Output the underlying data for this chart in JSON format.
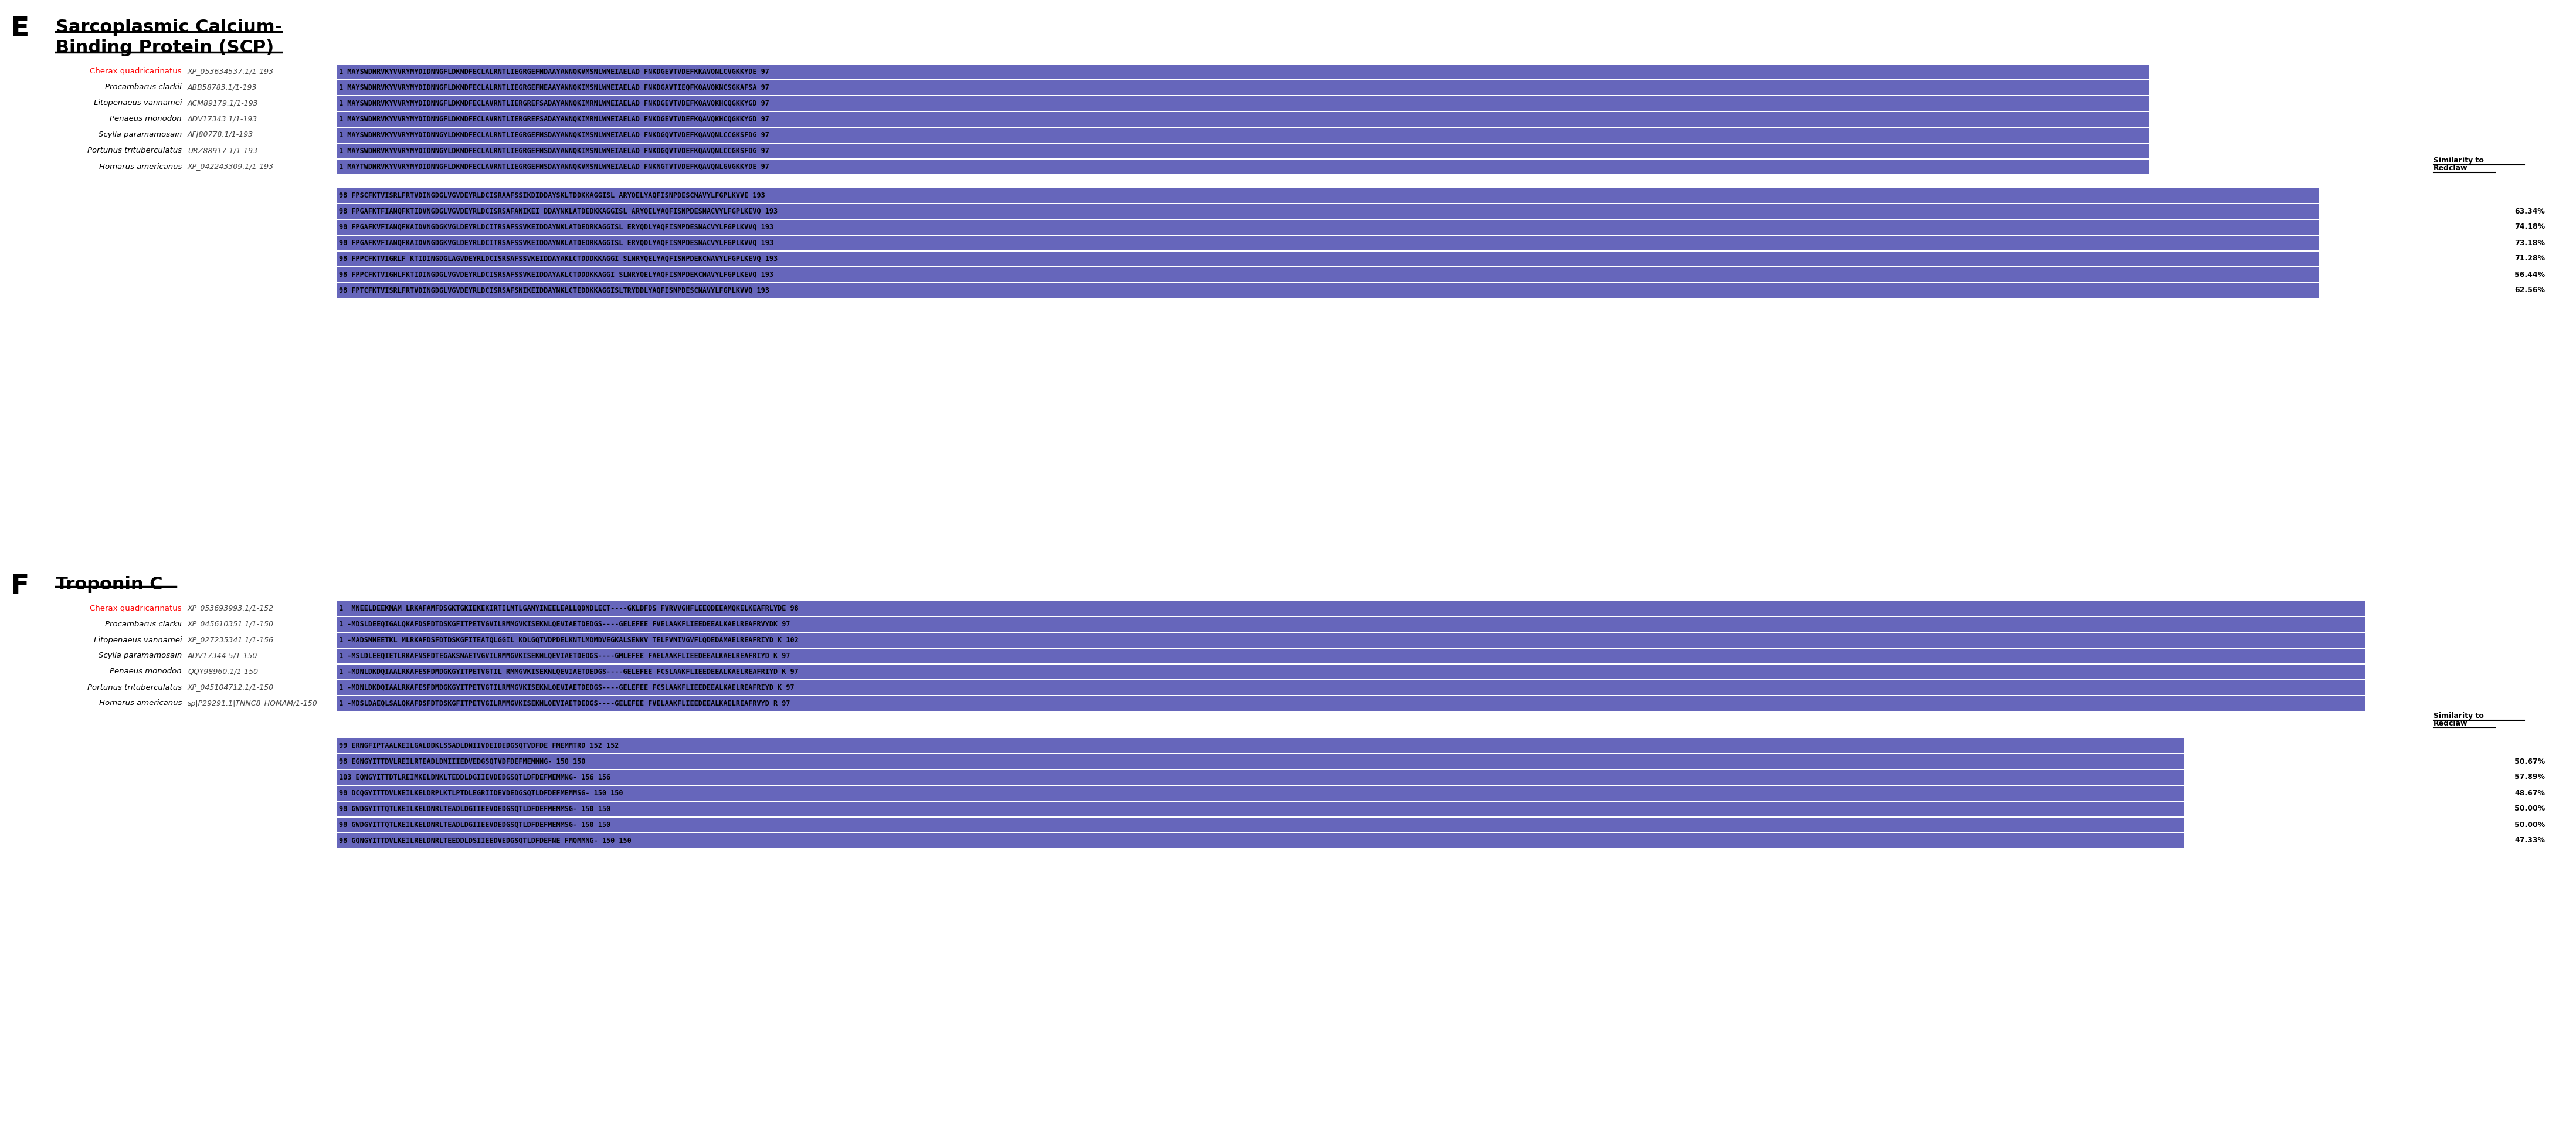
{
  "bg_color": "#FFFFFF",
  "blue_dark": "#6666BB",
  "blue_light": "#AAAADD",
  "panel_E_label": "E",
  "panel_F_label": "F",
  "panel_E_title_line1": "Sarcoplasmic Calcium-",
  "panel_E_title_line2": "Binding Protein (SCP)",
  "panel_F_title": "Troponin C",
  "scp_species_names": [
    "Cherax quadricarinatus",
    "Procambarus clarkii",
    "Litopenaeus vannamei",
    "Penaeus monodon",
    "Scylla paramamosain",
    "Portunus trituberculatus",
    "Homarus americanus"
  ],
  "scp_species_colors": [
    "#FF0000",
    "#000000",
    "#000000",
    "#000000",
    "#000000",
    "#000000",
    "#000000"
  ],
  "scp_accessions": [
    "XP_053634537.1/1-193",
    "ABB58783.1/1-193",
    "ACM89179.1/1-193",
    "ADV17343.1/1-193",
    "AFJ80778.1/1-193",
    "URZ88917.1/1-193",
    "XP_042243309.1/1-193"
  ],
  "scp_row1_seqs": [
    "1 MAYSWDNRVKYVVRYMYDIDNNGFLDKNDFECLALRNTLIEGRGEFNDAAYANNQKVMSNLWNEIAELAD FNKDGEVTVDEFKKAVQNLCVGKKYDE 97",
    "1 MAYSWDNRVKYVVRYMYDIDNNGFLDKNDFECLALRNTLIEGRGEFNEAAYANNQKIMSNLWNEIAELAD FNKDGAVTIEQFKQAVQKNCSGKAFSA 97",
    "1 MAYSWDNRVKYVVRYMYDIDNNGFLDKNDFECLAVRNTLIERGREFSADAYANNQKIMRNLWNEIAELAD FNKDGEVTVDEFKQAVQKHCQGKKYGD 97",
    "1 MAYSWDNRVKYVVRYMYDIDNNGFLDKNDFECLAVRNTLIERGREFSADAYANNQKIMRNLWNEIAELAD FNKDGEVTVDEFKQAVQKHCQGKKYGD 97",
    "1 MAYSWDNRVKYVVRYMYDIDNNGYLDKNDFECLALRNTLIEGRGEFNSDAYANNQKIMSNLWNEIAELAD FNKDGQVTVDEFKQAVQNLCCGKSFDG 97",
    "1 MAYSWDNRVKYVVRYMYDIDNNGYLDKNDFECLALRNTLIEGRGEFNSDAYANNQKIMSNLWNEIAELAD FNKDGQVTVDEFKQAVQNLCCGKSFDG 97",
    "1 MAYTWDNRVKYVVRYMYDIDNNGFLDKNDFECLAVRNTLIEGRGEFNSDAYANNQKVMSNLWNEIAELAD FNKNGTVTVDEFKQAVQNLGVGKKYDE 97"
  ],
  "scp_row2_seqs": [
    "98 FPSCFKTVISRLFRTVDINGDGLVGVDEYRLDCISRAAFSSIKDIDDAYSKLTDDKKAGGISL ARYQELYAQFISNPDESCNAVYLFGPLKVVE 193",
    "98 FPGAFKTFIANQFKTIDVNGDGLVGVDEYRLDCISRSAFANIKEI DDAYNKLATDEDKKAGGISL ARYQELYAQFISNPDESNACVYLFGPLKEVQ 193",
    "98 FPGAFKVFIANQFKAIDVNGDGKVGLDEYRLDCITRSAFSSVKEIDDAYNKLATDEDRKAGGISL ERYQDLYAQFISNPDESNACVYLFGPLKVVQ 193",
    "98 FPGAFKVFIANQFKAIDVNGDGKVGLDEYRLDCITRSAFSSVKEIDDAYNKLATDEDRKAGGISL ERYQDLYAQFISNPDESNACVYLFGPLKVVQ 193",
    "98 FPPCFKTVIGRLF KTIDINGDGLAGVDEYRLDCISRSAFSSVKEIDDAYAKLCTDDDKKAGGI SLNRYQELYAQFISNPDEKCNAVYLFGPLKEVQ 193",
    "98 FPPCFKTVIGHLFKTIDINGDGLVGVDEYRLDCISRSAFSSVKEIDDAYAKLCTDDDKKAGGI SLNRYQELYAQFISNPDEKCNAVYLFGPLKEVQ 193",
    "98 FPTCFKTVISRLFRTVDINGDGLVGVDEYRLDCISRSAFSNIKEIDDAYNKLCTEDDKKAGGISLTRYDDLYAQFISNPDESCNAVYLFGPLKVVQ 193"
  ],
  "scp_similarity": [
    "",
    "63.34%",
    "74.18%",
    "73.18%",
    "71.28%",
    "56.44%",
    "62.56%"
  ],
  "trop_species_names": [
    "Cherax quadricarinatus",
    "Procambarus clarkii",
    "Litopenaeus vannamei",
    "Scylla paramamosain",
    "Penaeus monodon",
    "Portunus trituberculatus",
    "Homarus americanus"
  ],
  "trop_species_colors": [
    "#FF0000",
    "#000000",
    "#000000",
    "#000000",
    "#000000",
    "#000000",
    "#000000"
  ],
  "trop_accessions": [
    "XP_053693993.1/1-152",
    "XP_045610351.1/1-150",
    "XP_027235341.1/1-156",
    "ADV17344.5/1-150",
    "QQY98960.1/1-150",
    "XP_045104712.1/1-150",
    "sp|P29291.1|TNNC8_HOMAM/1-150"
  ],
  "trop_row1_seqs": [
    "1  MNEELDEEKMAM LRKAFAMFDSGKTGKIEKEKIRTILNTLGANYINEELEALLQDNDLECT----GKLDFDS FVRVVGHFLEEQDEEAMQKELKEAFRLYDE 98",
    "1 -MDSLDEEQIGALQKAFDSFDTDSKGFITPETVGVILRMMGVKISEKNLQEVIAETDEDGS----GELEFEE FVELAAKFLIEEDEEALKAELREAFRVYDK 97",
    "1 -MADSMNEETKL MLRKAFDSFDTDSKGFITEATQLGGIL KDLGQTVDPDELKNTLMDMDVEGKALSENKV TELFVNIVGVFLQDEDAMAELREAFRIYD K 102",
    "1 -MSLDLEEQIETLRKAFNSFDTEGAKSNAETVGVILRMMGVKISEKNLQEVIAETDEDGS----GMLEFEE FAELAAKFLIEEDEEALKAELREAFRIYD K 97",
    "1 -MDNLDKDQIAALRKAFESFDMDGKGYITPETVGTIL RMMGVKISEKNLQEVIAETDEDGS----GELEFEE FCSLAAKFLIEEDEEALKAELREAFRIYD K 97",
    "1 -MDNLDKDQIAALRKAFESFDMDGKGYITPETVGTILRMMGVKISEKNLQEVIAETDEDGS----GELEFEE FCSLAAKFLIEEDEEALKAELREAFRIYD K 97",
    "1 -MDSLDAEQLSALQKAFDSFDTDSKGFITPETVGILRMMGVKISEKNLQEVIAETDEDGS----GELEFEE FVELAAKFLIEEDEEALKAELREAFRVYD R 97"
  ],
  "trop_row2_seqs": [
    "99 ERNGFIPTAALKEILGALDDKLSSADLDNIIVDEIDEDGSQTVDFDE FMEMMTRD 152",
    "98 EGNGYITTDVLREILRTEADLDNIIIEDVEDGSQTVDFDEFMEMMNG- 150",
    "103 EQNGYITTDTLREIMKELDNKLTEDDLDGIIEVDEDGSQTLDFDEFMEMMNG- 156",
    "98 DCQGYITTDVLKEILKELDRPLKTLPTDLEGRIIDEVDEDGSQTLDFDEFMEMMSG- 150",
    "98 GWDGYITTQTLKEILKELDNRLTEADLDGIIEEVDEDGSQTLDFDEFMEMMSG- 150",
    "98 GWDGYITTQTLKEILKELDNRLTEADLDGIIEEVDEDGSQTLDFDEFMEMMSG- 150",
    "98 GQNGYITTDVLKEILRELDNRLTEEDDLDSIIEEDVEDGSQTLDFDEFNE FMQMMNG- 150"
  ],
  "trop_row2_ends": [
    "152",
    "150",
    "156",
    "150",
    "150",
    "150",
    "150"
  ],
  "trop_similarity": [
    "",
    "50.67%",
    "57.89%",
    "48.67%",
    "50.00%",
    "50.00%",
    "47.33%"
  ]
}
